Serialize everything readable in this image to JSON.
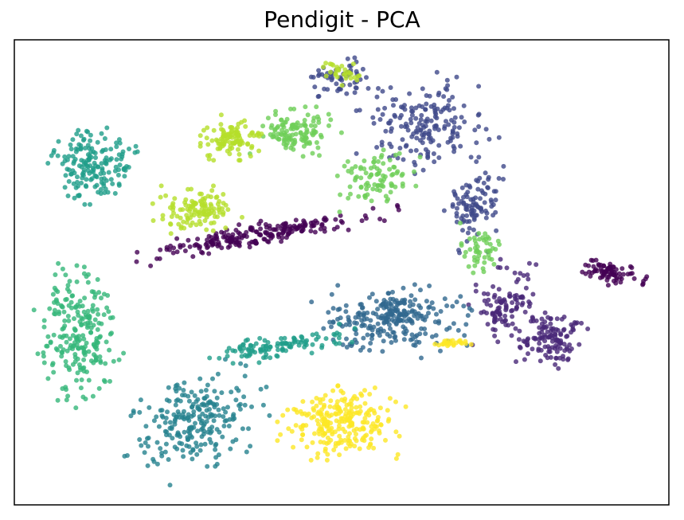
{
  "chart_data": {
    "type": "scatter",
    "title": "Pendigit - PCA",
    "xlabel": "",
    "ylabel": "",
    "xticks": [],
    "yticks": [],
    "grid": false,
    "legend": "none",
    "marker_alpha": 0.8,
    "colormap": "viridis",
    "clusters": [
      {
        "color": "#440154",
        "cx": 0.37,
        "cy": 0.42,
        "rx": 0.16,
        "ry": 0.02,
        "angle": -13,
        "n": 220
      },
      {
        "color": "#440154",
        "cx": 0.91,
        "cy": 0.5,
        "rx": 0.04,
        "ry": 0.02,
        "angle": 20,
        "n": 80
      },
      {
        "color": "#482878",
        "cx": 0.82,
        "cy": 0.64,
        "rx": 0.04,
        "ry": 0.05,
        "angle": 0,
        "n": 120
      },
      {
        "color": "#482878",
        "cx": 0.75,
        "cy": 0.57,
        "rx": 0.04,
        "ry": 0.07,
        "angle": 0,
        "n": 110
      },
      {
        "color": "#3e4989",
        "cx": 0.63,
        "cy": 0.18,
        "rx": 0.08,
        "ry": 0.08,
        "angle": 0,
        "n": 180
      },
      {
        "color": "#3e4989",
        "cx": 0.7,
        "cy": 0.36,
        "rx": 0.04,
        "ry": 0.07,
        "angle": 0,
        "n": 100
      },
      {
        "color": "#3e4989",
        "cx": 0.5,
        "cy": 0.08,
        "rx": 0.04,
        "ry": 0.03,
        "angle": 0,
        "n": 60
      },
      {
        "color": "#31688e",
        "cx": 0.58,
        "cy": 0.6,
        "rx": 0.09,
        "ry": 0.06,
        "angle": 0,
        "n": 260
      },
      {
        "color": "#26828e",
        "cx": 0.28,
        "cy": 0.82,
        "rx": 0.07,
        "ry": 0.1,
        "angle": 30,
        "n": 240
      },
      {
        "color": "#1f9e89",
        "cx": 0.12,
        "cy": 0.27,
        "rx": 0.05,
        "ry": 0.06,
        "angle": 0,
        "n": 170
      },
      {
        "color": "#1f9e89",
        "cx": 0.4,
        "cy": 0.66,
        "rx": 0.09,
        "ry": 0.02,
        "angle": -12,
        "n": 110
      },
      {
        "color": "#35b779",
        "cx": 0.1,
        "cy": 0.63,
        "rx": 0.05,
        "ry": 0.12,
        "angle": 0,
        "n": 230
      },
      {
        "color": "#6ece58",
        "cx": 0.43,
        "cy": 0.2,
        "rx": 0.05,
        "ry": 0.04,
        "angle": 0,
        "n": 120
      },
      {
        "color": "#6ece58",
        "cx": 0.55,
        "cy": 0.3,
        "rx": 0.05,
        "ry": 0.05,
        "angle": 0,
        "n": 90
      },
      {
        "color": "#6ece58",
        "cx": 0.71,
        "cy": 0.45,
        "rx": 0.03,
        "ry": 0.04,
        "angle": 0,
        "n": 50
      },
      {
        "color": "#b5de2b",
        "cx": 0.33,
        "cy": 0.21,
        "rx": 0.04,
        "ry": 0.035,
        "angle": 0,
        "n": 110
      },
      {
        "color": "#b5de2b",
        "cx": 0.28,
        "cy": 0.37,
        "rx": 0.05,
        "ry": 0.04,
        "angle": 0,
        "n": 120
      },
      {
        "color": "#b5de2b",
        "cx": 0.5,
        "cy": 0.07,
        "rx": 0.03,
        "ry": 0.02,
        "angle": 0,
        "n": 30
      },
      {
        "color": "#fde725",
        "cx": 0.5,
        "cy": 0.82,
        "rx": 0.07,
        "ry": 0.06,
        "angle": 0,
        "n": 250
      },
      {
        "color": "#fde725",
        "cx": 0.67,
        "cy": 0.65,
        "rx": 0.02,
        "ry": 0.01,
        "angle": 0,
        "n": 25
      }
    ]
  }
}
